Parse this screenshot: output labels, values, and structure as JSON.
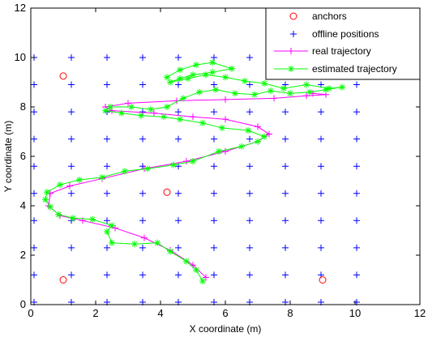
{
  "chart_data": {
    "type": "scatter",
    "xlabel": "X coordinate (m)",
    "ylabel": "Y coordinate (m)",
    "xlim": [
      0,
      12
    ],
    "ylim": [
      0,
      12
    ],
    "xticks": [
      "0",
      "2",
      "4",
      "6",
      "8",
      "10",
      "12"
    ],
    "yticks": [
      "0",
      "2",
      "4",
      "6",
      "8",
      "10",
      "12"
    ],
    "grid": false,
    "legend_position": "top-right",
    "series": [
      {
        "name": "anchors",
        "marker": "circle",
        "color": "#ff0000",
        "points": [
          [
            1.0,
            9.25
          ],
          [
            4.2,
            4.55
          ],
          [
            1.0,
            1.0
          ],
          [
            9.0,
            1.0
          ]
        ]
      },
      {
        "name": "offline positions",
        "marker": "plus",
        "color": "#0000ff",
        "x_values": [
          0.1,
          1.25,
          2.35,
          3.45,
          4.55,
          5.65,
          6.75,
          7.85,
          8.95,
          10.05
        ],
        "y_values": [
          0.1,
          1.2,
          2.3,
          3.4,
          4.5,
          5.6,
          6.7,
          7.8,
          8.9,
          10.0
        ]
      },
      {
        "name": "real trajectory",
        "marker": "plus-line",
        "color": "#ff00ff",
        "points": [
          [
            5.4,
            1.1
          ],
          [
            5.0,
            1.6
          ],
          [
            4.3,
            2.2
          ],
          [
            3.5,
            2.7
          ],
          [
            2.6,
            3.1
          ],
          [
            1.6,
            3.4
          ],
          [
            0.9,
            3.6
          ],
          [
            0.55,
            4.0
          ],
          [
            0.6,
            4.5
          ],
          [
            1.2,
            4.8
          ],
          [
            2.2,
            5.1
          ],
          [
            3.5,
            5.5
          ],
          [
            4.8,
            5.8
          ],
          [
            6.0,
            6.2
          ],
          [
            7.0,
            6.6
          ],
          [
            7.35,
            6.9
          ],
          [
            7.0,
            7.2
          ],
          [
            6.0,
            7.5
          ],
          [
            5.0,
            7.6
          ],
          [
            3.8,
            7.75
          ],
          [
            2.5,
            7.85
          ],
          [
            2.3,
            8.0
          ],
          [
            3.0,
            8.15
          ],
          [
            4.5,
            8.25
          ],
          [
            6.0,
            8.3
          ],
          [
            7.5,
            8.35
          ],
          [
            8.5,
            8.45
          ],
          [
            9.1,
            8.5
          ],
          [
            8.7,
            8.55
          ]
        ]
      },
      {
        "name": "estimated trajectory",
        "marker": "star-line",
        "color": "#00ff00",
        "points": [
          [
            5.3,
            0.95
          ],
          [
            5.1,
            1.4
          ],
          [
            4.8,
            1.75
          ],
          [
            4.3,
            2.15
          ],
          [
            3.9,
            2.5
          ],
          [
            3.2,
            2.45
          ],
          [
            2.5,
            2.5
          ],
          [
            2.35,
            2.95
          ],
          [
            2.5,
            3.2
          ],
          [
            1.9,
            3.45
          ],
          [
            1.3,
            3.5
          ],
          [
            0.85,
            3.65
          ],
          [
            0.6,
            3.95
          ],
          [
            0.45,
            4.25
          ],
          [
            0.5,
            4.55
          ],
          [
            0.9,
            4.85
          ],
          [
            1.5,
            5.05
          ],
          [
            2.2,
            5.15
          ],
          [
            2.9,
            5.4
          ],
          [
            3.6,
            5.5
          ],
          [
            4.4,
            5.65
          ],
          [
            5.0,
            5.8
          ],
          [
            5.8,
            6.2
          ],
          [
            6.5,
            6.4
          ],
          [
            7.0,
            6.6
          ],
          [
            7.2,
            6.8
          ],
          [
            6.7,
            7.05
          ],
          [
            5.9,
            7.15
          ],
          [
            5.3,
            7.35
          ],
          [
            4.6,
            7.5
          ],
          [
            4.1,
            7.6
          ],
          [
            3.4,
            7.65
          ],
          [
            2.8,
            7.75
          ],
          [
            2.3,
            7.85
          ],
          [
            2.45,
            8.0
          ],
          [
            3.1,
            8.0
          ],
          [
            3.7,
            7.9
          ],
          [
            4.2,
            8.0
          ],
          [
            4.7,
            8.35
          ],
          [
            5.2,
            8.6
          ],
          [
            5.7,
            8.7
          ],
          [
            6.3,
            8.55
          ],
          [
            6.9,
            8.5
          ],
          [
            7.4,
            8.65
          ],
          [
            8.0,
            8.55
          ],
          [
            8.6,
            8.6
          ],
          [
            9.1,
            8.7
          ],
          [
            9.6,
            8.8
          ],
          [
            9.2,
            8.75
          ],
          [
            8.5,
            8.9
          ],
          [
            7.8,
            8.75
          ],
          [
            7.2,
            8.95
          ],
          [
            6.6,
            9.05
          ],
          [
            6.0,
            9.2
          ],
          [
            5.4,
            9.3
          ],
          [
            4.85,
            9.15
          ],
          [
            4.3,
            9.0
          ],
          [
            4.6,
            9.15
          ],
          [
            5.0,
            9.3
          ],
          [
            5.6,
            9.4
          ],
          [
            6.2,
            9.55
          ],
          [
            5.6,
            9.8
          ],
          [
            5.1,
            9.7
          ],
          [
            4.6,
            9.5
          ],
          [
            4.2,
            9.2
          ]
        ]
      }
    ]
  }
}
